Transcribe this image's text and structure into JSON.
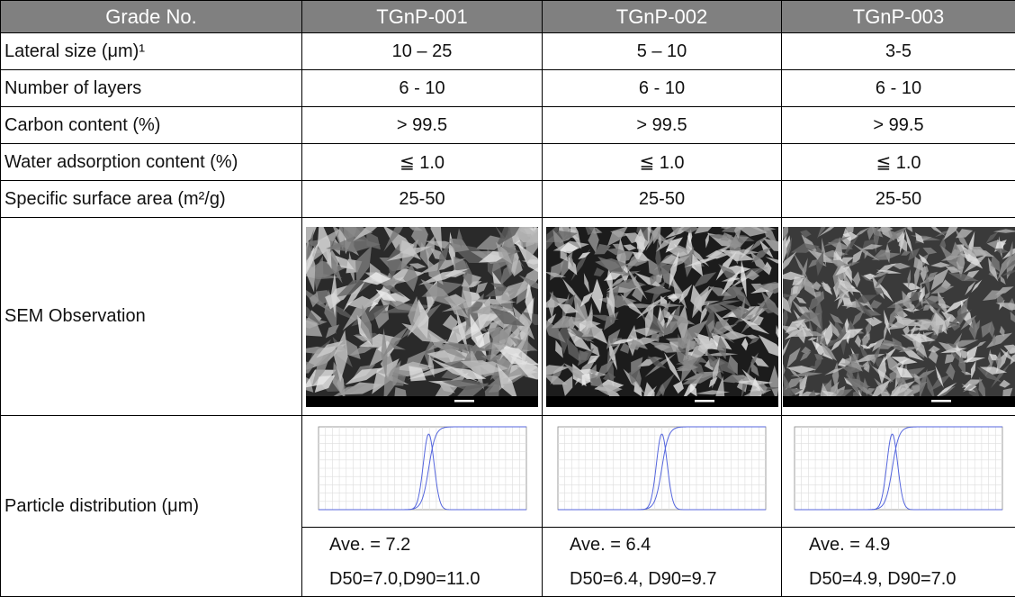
{
  "table": {
    "header": [
      "Grade No.",
      "TGnP-001",
      "TGnP-002",
      "TGnP-003"
    ],
    "rows": [
      {
        "label": "Lateral size (μm)¹",
        "values": [
          "10 – 25",
          "5 – 10",
          "3-5"
        ]
      },
      {
        "label": "Number of layers",
        "values": [
          "6 - 10",
          "6 - 10",
          "6 - 10"
        ]
      },
      {
        "label": "Carbon content (%)",
        "values": [
          "> 99.5",
          "> 99.5",
          "> 99.5"
        ]
      },
      {
        "label": "Water adsorption content (%)",
        "values": [
          "≦  1.0",
          "≦  1.0",
          "≦  1.0"
        ]
      },
      {
        "label": "Specific surface area (m²/g)",
        "values": [
          "25-50",
          "25-50",
          "25-50"
        ]
      }
    ],
    "sem_label": "SEM Observation",
    "distribution": {
      "label": "Particle distribution (μm)",
      "stats": [
        [
          "Ave. = 7.2",
          "D50=7.0,D90=11.0"
        ],
        [
          "Ave. = 6.4",
          "D50=6.4, D90=9.7"
        ],
        [
          "Ave. = 4.9",
          "D50=4.9, D90=7.0"
        ]
      ]
    }
  }
}
